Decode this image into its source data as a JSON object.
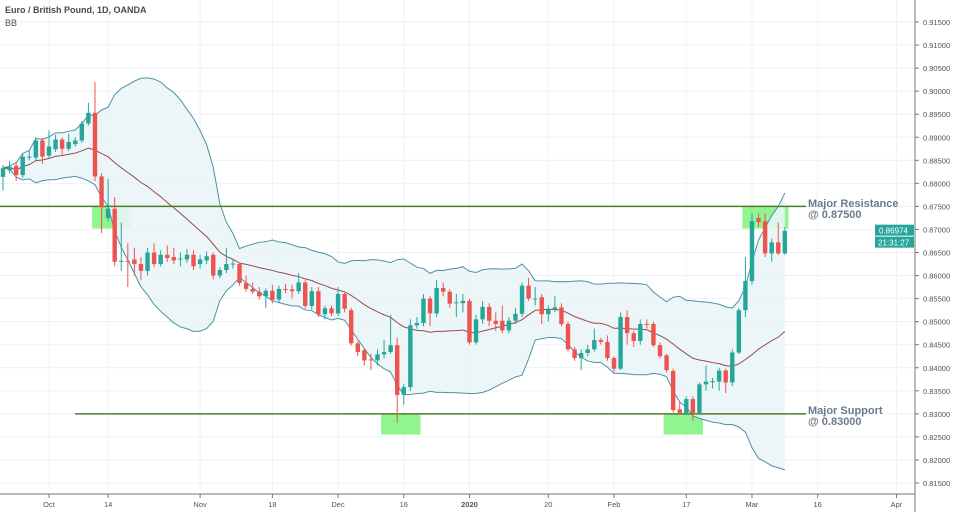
{
  "header": {
    "symbol_title": "Euro / British Pound, 1D, OANDA",
    "indicator_label": "BB"
  },
  "annotations": {
    "resistance": {
      "line1": "Major Resistance",
      "line2": "@ 0.87500",
      "level": 0.875
    },
    "support": {
      "line1": "Major Support",
      "line2": "@ 0.83000",
      "level": 0.83
    }
  },
  "price_tag": {
    "price": "0.86974",
    "countdown": "21:31:27",
    "color": "#26a69a"
  },
  "colors": {
    "up": "#26a69a",
    "down": "#ef5350",
    "band": "#4b93a3",
    "band_fill": "#eaf5f7",
    "basis": "#9a4a4a",
    "level_line": "#4e7d2a",
    "zone": "#7cf27c",
    "grid": "#eef1f6"
  },
  "chart_data": {
    "type": "candlestick",
    "title": "Euro / British Pound, 1D, OANDA",
    "indicator": "BB",
    "ylim": [
      0.8125,
      0.9175
    ],
    "y_ticks": [
      "0.91500",
      "0.91000",
      "0.90500",
      "0.90000",
      "0.89500",
      "0.89000",
      "0.88500",
      "0.88000",
      "0.87500",
      "0.87000",
      "0.86500",
      "0.86000",
      "0.85500",
      "0.85000",
      "0.84500",
      "0.84000",
      "0.83500",
      "0.83000",
      "0.82500",
      "0.82000",
      "0.81500"
    ],
    "x_ticks": [
      {
        "label": "Oct",
        "at": 7
      },
      {
        "label": "14",
        "at": 16
      },
      {
        "label": "Nov",
        "at": 30
      },
      {
        "label": "18",
        "at": 41
      },
      {
        "label": "Dec",
        "at": 51
      },
      {
        "label": "16",
        "at": 61
      },
      {
        "label": "2020",
        "at": 71
      },
      {
        "label": "20",
        "at": 83
      },
      {
        "label": "Feb",
        "at": 93
      },
      {
        "label": "17",
        "at": 104
      },
      {
        "label": "Mar",
        "at": 114
      },
      {
        "label": "16",
        "at": 124
      },
      {
        "label": "Apr",
        "at": 136
      }
    ],
    "horizontal_levels": [
      0.875,
      0.83
    ],
    "zones": [
      {
        "from": 14,
        "to": 20,
        "top": 0.875,
        "bottom": 0.8702
      },
      {
        "from": 58,
        "to": 64,
        "top": 0.83,
        "bottom": 0.8255
      },
      {
        "from": 101,
        "to": 107,
        "top": 0.83,
        "bottom": 0.8255
      },
      {
        "from": 113,
        "to": 120,
        "top": 0.875,
        "bottom": 0.8702
      }
    ],
    "ohlc": [
      [
        0.8814,
        0.884,
        0.8785,
        0.8833
      ],
      [
        0.8828,
        0.8848,
        0.8822,
        0.8836
      ],
      [
        0.8838,
        0.8845,
        0.8805,
        0.8818
      ],
      [
        0.8818,
        0.8865,
        0.8812,
        0.8858
      ],
      [
        0.8856,
        0.8872,
        0.885,
        0.8858
      ],
      [
        0.8856,
        0.89,
        0.885,
        0.8893
      ],
      [
        0.8893,
        0.8898,
        0.8842,
        0.8858
      ],
      [
        0.886,
        0.8915,
        0.8855,
        0.888
      ],
      [
        0.8874,
        0.8905,
        0.8868,
        0.8895
      ],
      [
        0.8895,
        0.89,
        0.8862,
        0.8875
      ],
      [
        0.8875,
        0.8908,
        0.887,
        0.889
      ],
      [
        0.8885,
        0.89,
        0.888,
        0.8893
      ],
      [
        0.8893,
        0.8935,
        0.8888,
        0.893
      ],
      [
        0.893,
        0.8975,
        0.8925,
        0.8953
      ],
      [
        0.8953,
        0.902,
        0.8805,
        0.8815
      ],
      [
        0.8815,
        0.8822,
        0.8692,
        0.8748
      ],
      [
        0.8725,
        0.881,
        0.8718,
        0.8745
      ],
      [
        0.8745,
        0.877,
        0.862,
        0.863
      ],
      [
        0.863,
        0.8715,
        0.861,
        0.8632
      ],
      [
        0.8632,
        0.867,
        0.8575,
        0.863
      ],
      [
        0.8635,
        0.866,
        0.86,
        0.8625
      ],
      [
        0.8625,
        0.864,
        0.859,
        0.861
      ],
      [
        0.861,
        0.866,
        0.86,
        0.865
      ],
      [
        0.865,
        0.867,
        0.8618,
        0.8625
      ],
      [
        0.8625,
        0.8655,
        0.862,
        0.8645
      ],
      [
        0.8645,
        0.8665,
        0.863,
        0.8638
      ],
      [
        0.864,
        0.866,
        0.8625,
        0.8633
      ],
      [
        0.8635,
        0.865,
        0.862,
        0.8637
      ],
      [
        0.8635,
        0.8658,
        0.8628,
        0.8645
      ],
      [
        0.8645,
        0.8655,
        0.8612,
        0.862
      ],
      [
        0.8625,
        0.8645,
        0.8615,
        0.8635
      ],
      [
        0.8633,
        0.8652,
        0.8625,
        0.8642
      ],
      [
        0.8645,
        0.865,
        0.8592,
        0.86
      ],
      [
        0.86,
        0.8618,
        0.8594,
        0.8612
      ],
      [
        0.8612,
        0.866,
        0.8605,
        0.8625
      ],
      [
        0.8625,
        0.8635,
        0.8615,
        0.8626
      ],
      [
        0.8625,
        0.8628,
        0.8578,
        0.8584
      ],
      [
        0.8584,
        0.86,
        0.8565,
        0.8571
      ],
      [
        0.8571,
        0.8585,
        0.856,
        0.8565
      ],
      [
        0.8565,
        0.8575,
        0.8548,
        0.8555
      ],
      [
        0.8555,
        0.8572,
        0.853,
        0.8567
      ],
      [
        0.8567,
        0.858,
        0.854,
        0.8547
      ],
      [
        0.8548,
        0.8578,
        0.854,
        0.8571
      ],
      [
        0.8571,
        0.8582,
        0.8562,
        0.857
      ],
      [
        0.857,
        0.858,
        0.855,
        0.8566
      ],
      [
        0.8566,
        0.8605,
        0.856,
        0.8585
      ],
      [
        0.8585,
        0.859,
        0.8528,
        0.8534
      ],
      [
        0.8534,
        0.8575,
        0.8525,
        0.8566
      ],
      [
        0.8566,
        0.8575,
        0.851,
        0.8516
      ],
      [
        0.8516,
        0.8535,
        0.8505,
        0.8529
      ],
      [
        0.8529,
        0.8535,
        0.8512,
        0.8518
      ],
      [
        0.8518,
        0.8575,
        0.8512,
        0.856
      ],
      [
        0.856,
        0.8565,
        0.852,
        0.8528
      ],
      [
        0.8525,
        0.853,
        0.8448,
        0.8453
      ],
      [
        0.8453,
        0.8458,
        0.8425,
        0.8434
      ],
      [
        0.8438,
        0.8442,
        0.8405,
        0.8416
      ],
      [
        0.8418,
        0.843,
        0.8395,
        0.8416
      ],
      [
        0.8416,
        0.844,
        0.8405,
        0.8429
      ],
      [
        0.8429,
        0.846,
        0.842,
        0.8434
      ],
      [
        0.8434,
        0.8515,
        0.843,
        0.8449
      ],
      [
        0.8449,
        0.8465,
        0.828,
        0.8341
      ],
      [
        0.8341,
        0.8365,
        0.832,
        0.8358
      ],
      [
        0.8358,
        0.8505,
        0.835,
        0.8492
      ],
      [
        0.8492,
        0.851,
        0.8485,
        0.8497
      ],
      [
        0.8497,
        0.856,
        0.849,
        0.855
      ],
      [
        0.855,
        0.8555,
        0.849,
        0.8518
      ],
      [
        0.8518,
        0.859,
        0.851,
        0.8573
      ],
      [
        0.8573,
        0.8585,
        0.8555,
        0.8565
      ],
      [
        0.8565,
        0.857,
        0.853,
        0.8539
      ],
      [
        0.854,
        0.856,
        0.851,
        0.8542
      ],
      [
        0.854,
        0.856,
        0.852,
        0.8545
      ],
      [
        0.8545,
        0.855,
        0.845,
        0.8455
      ],
      [
        0.8455,
        0.8515,
        0.845,
        0.8505
      ],
      [
        0.8505,
        0.8545,
        0.8495,
        0.8532
      ],
      [
        0.8532,
        0.854,
        0.849,
        0.8502
      ],
      [
        0.8502,
        0.852,
        0.848,
        0.8495
      ],
      [
        0.8502,
        0.8535,
        0.8475,
        0.8481
      ],
      [
        0.8481,
        0.851,
        0.8475,
        0.8502
      ],
      [
        0.8502,
        0.853,
        0.8495,
        0.8517
      ],
      [
        0.8517,
        0.8585,
        0.851,
        0.8578
      ],
      [
        0.8578,
        0.8595,
        0.8545,
        0.855
      ],
      [
        0.855,
        0.8575,
        0.8535,
        0.855
      ],
      [
        0.8553,
        0.856,
        0.8495,
        0.8516
      ],
      [
        0.8516,
        0.8535,
        0.85,
        0.8527
      ],
      [
        0.8527,
        0.8555,
        0.852,
        0.8531
      ],
      [
        0.8531,
        0.854,
        0.849,
        0.8495
      ],
      [
        0.8495,
        0.85,
        0.8435,
        0.844
      ],
      [
        0.844,
        0.8445,
        0.8415,
        0.8421
      ],
      [
        0.8421,
        0.844,
        0.8395,
        0.8432
      ],
      [
        0.8432,
        0.845,
        0.8425,
        0.844
      ],
      [
        0.844,
        0.8485,
        0.8435,
        0.846
      ],
      [
        0.846,
        0.8465,
        0.845,
        0.8456
      ],
      [
        0.8456,
        0.847,
        0.8415,
        0.8421
      ],
      [
        0.8421,
        0.8425,
        0.839,
        0.8398
      ],
      [
        0.8398,
        0.852,
        0.8395,
        0.851
      ],
      [
        0.851,
        0.8525,
        0.845,
        0.8475
      ],
      [
        0.8475,
        0.848,
        0.8445,
        0.8458
      ],
      [
        0.8458,
        0.8505,
        0.845,
        0.8495
      ],
      [
        0.8495,
        0.8505,
        0.8485,
        0.8494
      ],
      [
        0.8495,
        0.85,
        0.8445,
        0.8449
      ],
      [
        0.8449,
        0.8455,
        0.842,
        0.8425
      ],
      [
        0.8427,
        0.843,
        0.839,
        0.8395
      ],
      [
        0.8393,
        0.8398,
        0.8303,
        0.8308
      ],
      [
        0.831,
        0.8325,
        0.8298,
        0.8302
      ],
      [
        0.8302,
        0.8338,
        0.8298,
        0.8332
      ],
      [
        0.8332,
        0.8338,
        0.8285,
        0.8302
      ],
      [
        0.8302,
        0.8368,
        0.83,
        0.8364
      ],
      [
        0.8364,
        0.8405,
        0.835,
        0.837
      ],
      [
        0.837,
        0.8378,
        0.8355,
        0.8371
      ],
      [
        0.837,
        0.84,
        0.835,
        0.8394
      ],
      [
        0.8394,
        0.8398,
        0.8345,
        0.8368
      ],
      [
        0.8368,
        0.844,
        0.836,
        0.8433
      ],
      [
        0.8433,
        0.853,
        0.843,
        0.8525
      ],
      [
        0.8525,
        0.864,
        0.851,
        0.8588
      ],
      [
        0.8588,
        0.8735,
        0.858,
        0.8718
      ],
      [
        0.8725,
        0.8735,
        0.8705,
        0.8716
      ],
      [
        0.8718,
        0.8735,
        0.864,
        0.8648
      ],
      [
        0.8648,
        0.868,
        0.863,
        0.8672
      ],
      [
        0.8672,
        0.8715,
        0.8645,
        0.8648
      ],
      [
        0.8648,
        0.8705,
        0.8645,
        0.8697
      ]
    ]
  }
}
